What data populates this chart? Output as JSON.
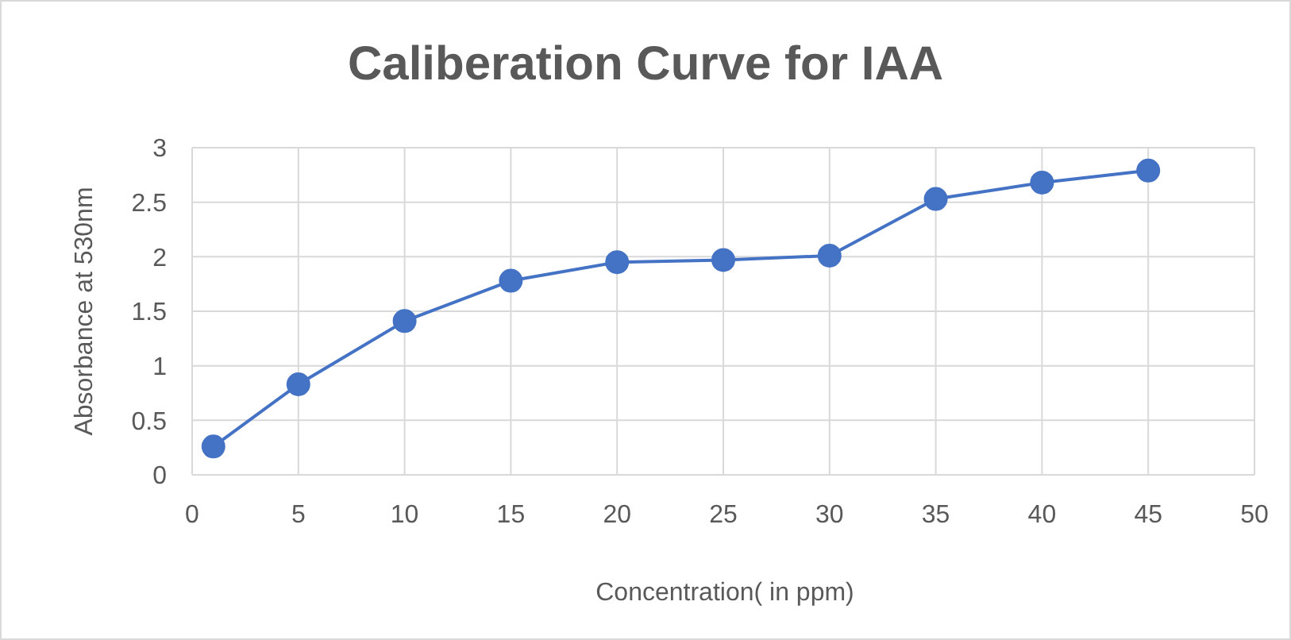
{
  "chart_data": {
    "type": "line",
    "title": "Caliberation Curve for IAA",
    "xlabel": "Concentration( in ppm)",
    "ylabel": "Absorbance at 530nm",
    "x": [
      1,
      5,
      10,
      15,
      20,
      25,
      30,
      35,
      40,
      45
    ],
    "series": [
      {
        "color": "#4472c4",
        "values": [
          0.26,
          0.83,
          1.41,
          1.78,
          1.95,
          1.97,
          2.01,
          2.53,
          2.68,
          2.79
        ]
      }
    ],
    "xlim": [
      0,
      50
    ],
    "xticks": [
      0,
      5,
      10,
      15,
      20,
      25,
      30,
      35,
      40,
      45,
      50
    ],
    "ylim": [
      0,
      3
    ],
    "yticks": [
      0,
      0.5,
      1,
      1.5,
      2,
      2.5,
      3
    ],
    "grid": true,
    "marker": "circle",
    "line_style": "solid"
  }
}
